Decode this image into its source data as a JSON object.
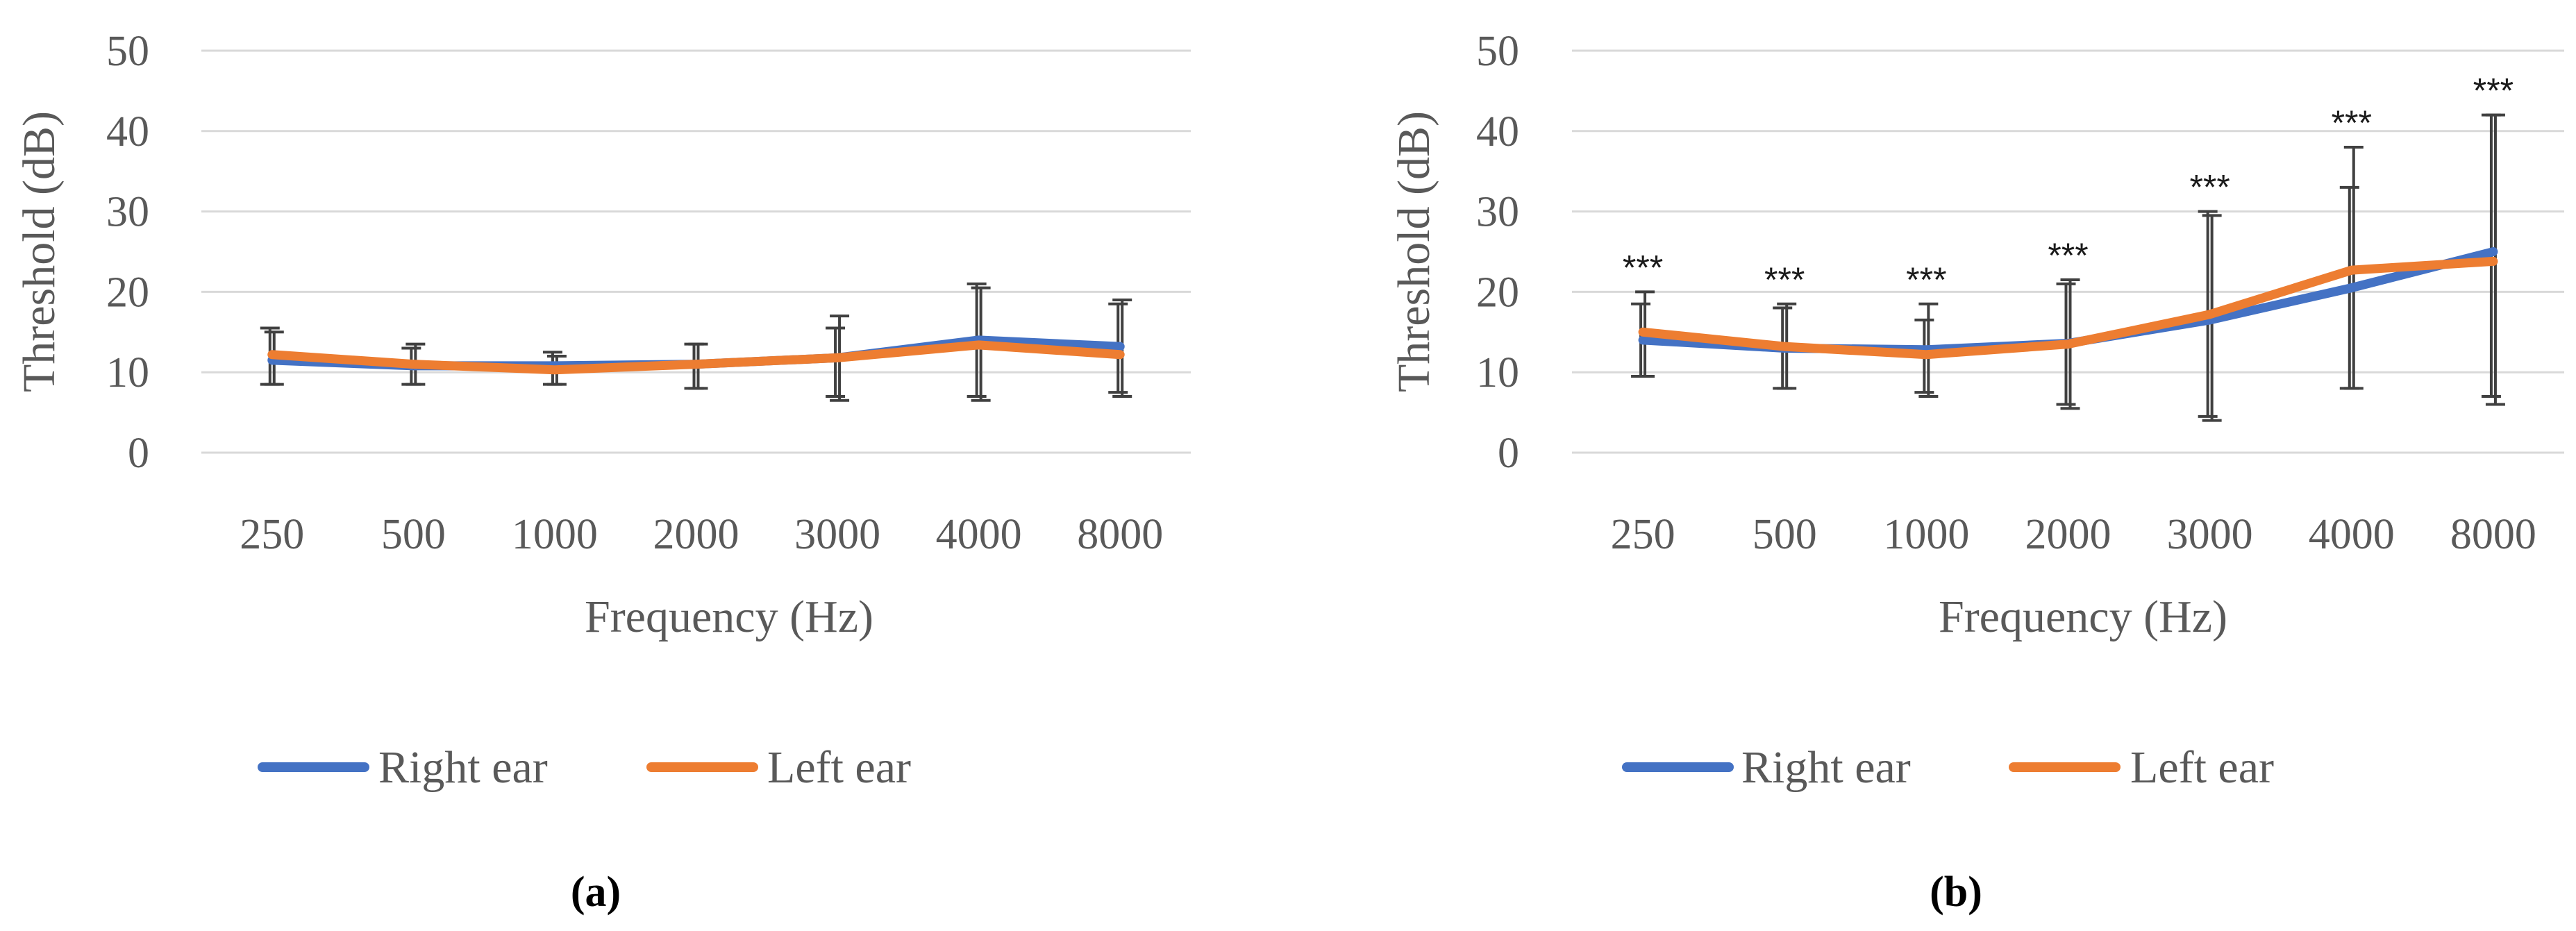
{
  "chart_data": [
    {
      "type": "line",
      "panel_label": "(a)",
      "categories": [
        "250",
        "500",
        "1000",
        "2000",
        "3000",
        "4000",
        "8000"
      ],
      "xlabel": "Frequency (Hz)",
      "ylabel": "Threshold (dB)",
      "ylim": [
        0,
        50
      ],
      "yticks": [
        "0",
        "10",
        "20",
        "30",
        "40",
        "50"
      ],
      "grid": true,
      "legend_position": "bottom",
      "series": [
        {
          "name": "Right ear",
          "color": "#4472C4",
          "values": [
            11.5,
            10.8,
            10.8,
            11.0,
            11.8,
            14.0,
            13.2
          ],
          "err_low": [
            8.5,
            8.5,
            8.5,
            8.0,
            7.0,
            7.0,
            7.5
          ],
          "err_high": [
            15.5,
            13.0,
            12.5,
            13.5,
            15.5,
            21.0,
            18.5
          ]
        },
        {
          "name": "Left ear",
          "color": "#ED7D31",
          "values": [
            12.2,
            11.0,
            10.3,
            11.0,
            11.8,
            13.4,
            12.2
          ],
          "err_low": [
            8.5,
            8.5,
            8.5,
            8.0,
            6.5,
            6.5,
            7.0
          ],
          "err_high": [
            15.0,
            13.5,
            12.0,
            13.5,
            17.0,
            20.5,
            19.0
          ]
        }
      ],
      "annotations": []
    },
    {
      "type": "line",
      "panel_label": "(b)",
      "categories": [
        "250",
        "500",
        "1000",
        "2000",
        "3000",
        "4000",
        "8000"
      ],
      "xlabel": "Frequency (Hz)",
      "ylabel": "Threshold (dB)",
      "ylim": [
        0,
        50
      ],
      "yticks": [
        "0",
        "10",
        "20",
        "30",
        "40",
        "50"
      ],
      "grid": true,
      "legend_position": "bottom",
      "series": [
        {
          "name": "Right ear",
          "color": "#4472C4",
          "values": [
            14.0,
            13.0,
            12.8,
            13.6,
            16.5,
            20.5,
            25.0
          ],
          "err_low": [
            9.5,
            8.0,
            7.5,
            6.0,
            4.5,
            8.0,
            7.0
          ],
          "err_high": [
            18.5,
            18.0,
            16.5,
            21.0,
            30.0,
            33.0,
            42.0
          ]
        },
        {
          "name": "Left ear",
          "color": "#ED7D31",
          "values": [
            15.0,
            13.2,
            12.2,
            13.5,
            17.2,
            22.7,
            23.8
          ],
          "err_low": [
            9.5,
            8.0,
            7.0,
            5.5,
            4.0,
            8.0,
            6.0
          ],
          "err_high": [
            20.0,
            18.5,
            18.5,
            21.5,
            29.5,
            38.0,
            42.0
          ]
        }
      ],
      "annotations": [
        "***",
        "***",
        "***",
        "***",
        "***",
        "***",
        "***"
      ]
    }
  ]
}
